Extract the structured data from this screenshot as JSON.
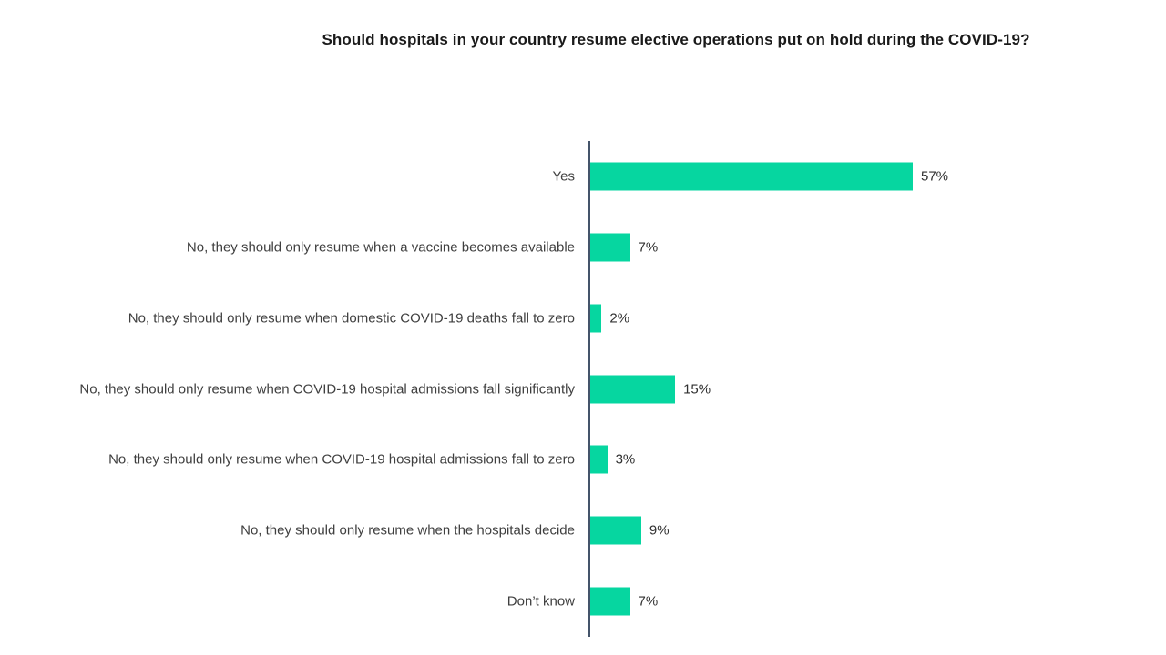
{
  "chart_data": {
    "type": "bar",
    "orientation": "horizontal",
    "title": "Should hospitals in your country resume elective operations put on hold during the COVID-19?",
    "categories": [
      "Yes",
      "No, they should only resume when a vaccine becomes available",
      "No, they should only resume when domestic COVID-19 deaths fall to zero",
      "No, they should only resume when COVID-19 hospital admissions fall significantly",
      "No, they should only resume when COVID-19 hospital admissions fall to zero",
      "No, they should only resume when the hospitals decide",
      "Don’t know"
    ],
    "values": [
      57,
      7,
      2,
      15,
      3,
      9,
      7
    ],
    "data_labels": [
      "57%",
      "7%",
      "2%",
      "15%",
      "3%",
      "9%",
      "7%"
    ],
    "value_suffix": "%",
    "xlabel": "",
    "ylabel": "",
    "xlim": [
      0,
      60
    ],
    "grid": false,
    "legend": false,
    "bar_color": "#06d6a0",
    "axis_color": "#44546a",
    "label_color": "#3f3f3f",
    "title_color": "#1a1a1a"
  }
}
